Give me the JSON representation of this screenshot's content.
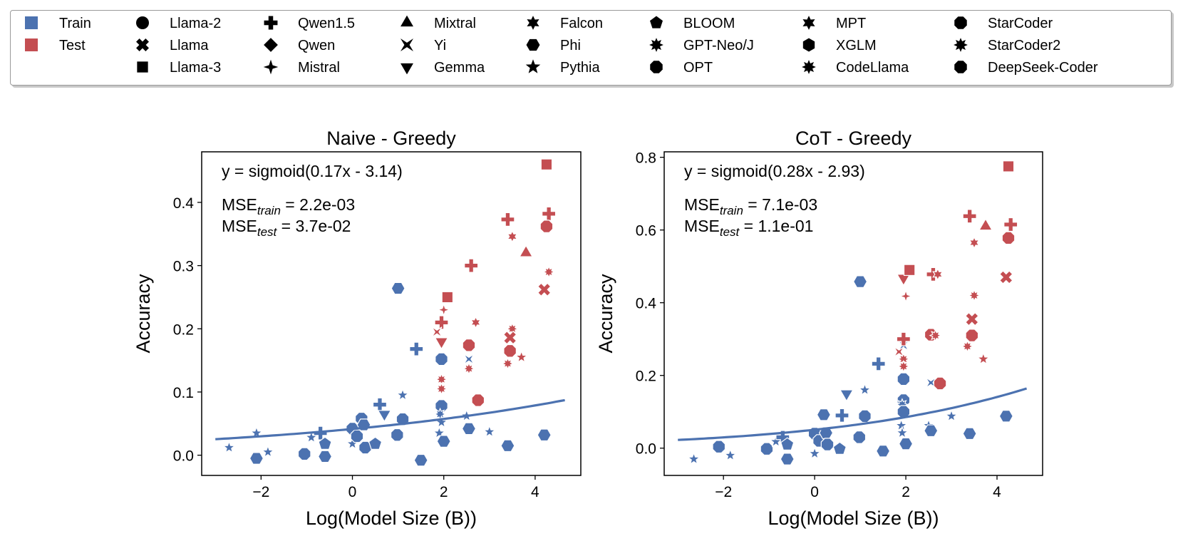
{
  "legend": {
    "splits": [
      {
        "label": "Train",
        "color": "#4c72b0"
      },
      {
        "label": "Test",
        "color": "#c44e52"
      }
    ],
    "families": [
      {
        "label": "Llama-2",
        "marker": "circle"
      },
      {
        "label": "Llama",
        "marker": "x"
      },
      {
        "label": "Llama-3",
        "marker": "square"
      },
      {
        "label": "Qwen1.5",
        "marker": "plus"
      },
      {
        "label": "Qwen",
        "marker": "diamond"
      },
      {
        "label": "Mistral",
        "marker": "thin-diamond"
      },
      {
        "label": "Mixtral",
        "marker": "triangle-up"
      },
      {
        "label": "Yi",
        "marker": "bowtie"
      },
      {
        "label": "Gemma",
        "marker": "triangle-down"
      },
      {
        "label": "Falcon",
        "marker": "star6"
      },
      {
        "label": "Phi",
        "marker": "hexagon"
      },
      {
        "label": "Pythia",
        "marker": "star"
      },
      {
        "label": "BLOOM",
        "marker": "pentagon"
      },
      {
        "label": "GPT-Neo/J",
        "marker": "star8"
      },
      {
        "label": "OPT",
        "marker": "octagon"
      },
      {
        "label": "MPT",
        "marker": "star6"
      },
      {
        "label": "XGLM",
        "marker": "hexagon2"
      },
      {
        "label": "CodeLlama",
        "marker": "star8"
      },
      {
        "label": "StarCoder",
        "marker": "octagon"
      },
      {
        "label": "StarCoder2",
        "marker": "star8"
      },
      {
        "label": "DeepSeek-Coder",
        "marker": "octagon"
      }
    ]
  },
  "chart_data": [
    {
      "type": "scatter",
      "title": "Naive - Greedy",
      "xlabel": "Log(Model Size (B))",
      "ylabel": "Accuracy",
      "xlim": [
        -3.3,
        5.0
      ],
      "ylim": [
        -0.032,
        0.48
      ],
      "xticks": [
        -2,
        0,
        2,
        4
      ],
      "xtick_labels": [
        "−2",
        "0",
        "2",
        "4"
      ],
      "yticks": [
        0.0,
        0.1,
        0.2,
        0.3,
        0.4
      ],
      "ytick_labels": [
        "0.0",
        "0.1",
        "0.2",
        "0.3",
        "0.4"
      ],
      "fit": {
        "label": "y = sigmoid(0.17x - 3.14)",
        "a": 0.17,
        "b": -3.14,
        "x_range": [
          -3.0,
          4.65
        ]
      },
      "mse_train": {
        "base": "MSE",
        "sub": "train",
        "value": " = 2.2e-03"
      },
      "mse_test": {
        "base": "MSE",
        "sub": "test",
        "value": " = 3.7e-02"
      },
      "points": [
        {
          "x": -2.7,
          "y": 0.012,
          "m": "star",
          "s": "train"
        },
        {
          "x": -2.1,
          "y": -0.005,
          "m": "hexagon",
          "s": "train"
        },
        {
          "x": -2.1,
          "y": 0.035,
          "m": "star",
          "s": "train"
        },
        {
          "x": -1.85,
          "y": 0.005,
          "m": "star",
          "s": "train"
        },
        {
          "x": -1.05,
          "y": 0.002,
          "m": "octagon",
          "s": "train"
        },
        {
          "x": -0.9,
          "y": 0.028,
          "m": "star",
          "s": "train"
        },
        {
          "x": -0.7,
          "y": 0.035,
          "m": "plus",
          "s": "train"
        },
        {
          "x": -0.6,
          "y": 0.018,
          "m": "pentagon",
          "s": "train"
        },
        {
          "x": -0.6,
          "y": -0.002,
          "m": "hexagon",
          "s": "train"
        },
        {
          "x": 0.0,
          "y": 0.042,
          "m": "octagon",
          "s": "train"
        },
        {
          "x": 0.0,
          "y": 0.018,
          "m": "star",
          "s": "train"
        },
        {
          "x": 0.1,
          "y": 0.03,
          "m": "octagon",
          "s": "train"
        },
        {
          "x": 0.2,
          "y": 0.058,
          "m": "octagon",
          "s": "train"
        },
        {
          "x": 0.25,
          "y": 0.048,
          "m": "hexagon",
          "s": "train"
        },
        {
          "x": 0.28,
          "y": 0.012,
          "m": "octagon",
          "s": "train"
        },
        {
          "x": 0.5,
          "y": 0.018,
          "m": "pentagon",
          "s": "train"
        },
        {
          "x": 0.6,
          "y": 0.08,
          "m": "plus",
          "s": "train"
        },
        {
          "x": 0.7,
          "y": 0.065,
          "m": "triangle-down",
          "s": "train"
        },
        {
          "x": 0.98,
          "y": 0.032,
          "m": "octagon",
          "s": "train"
        },
        {
          "x": 1.0,
          "y": 0.264,
          "m": "hexagon",
          "s": "train"
        },
        {
          "x": 1.1,
          "y": 0.095,
          "m": "star",
          "s": "train"
        },
        {
          "x": 1.1,
          "y": 0.057,
          "m": "octagon",
          "s": "train"
        },
        {
          "x": 1.5,
          "y": -0.008,
          "m": "hexagon",
          "s": "train"
        },
        {
          "x": 1.4,
          "y": 0.168,
          "m": "plus",
          "s": "train"
        },
        {
          "x": 1.95,
          "y": 0.152,
          "m": "octagon",
          "s": "train"
        },
        {
          "x": 1.95,
          "y": 0.078,
          "m": "octagon",
          "s": "train"
        },
        {
          "x": 1.92,
          "y": 0.065,
          "m": "star8",
          "s": "train"
        },
        {
          "x": 1.95,
          "y": 0.052,
          "m": "star",
          "s": "train"
        },
        {
          "x": 1.9,
          "y": 0.035,
          "m": "star",
          "s": "train"
        },
        {
          "x": 2.0,
          "y": 0.022,
          "m": "hexagon",
          "s": "train"
        },
        {
          "x": 2.5,
          "y": 0.062,
          "m": "star",
          "s": "train"
        },
        {
          "x": 2.55,
          "y": 0.042,
          "m": "hexagon",
          "s": "train"
        },
        {
          "x": 2.55,
          "y": 0.152,
          "m": "bowtie",
          "s": "train"
        },
        {
          "x": 3.0,
          "y": 0.037,
          "m": "star",
          "s": "train"
        },
        {
          "x": 3.4,
          "y": 0.015,
          "m": "hexagon",
          "s": "train"
        },
        {
          "x": 4.2,
          "y": 0.032,
          "m": "hexagon",
          "s": "train"
        },
        {
          "x": 1.95,
          "y": 0.21,
          "m": "plus",
          "s": "test"
        },
        {
          "x": 1.95,
          "y": 0.18,
          "m": "triangle-down",
          "s": "test"
        },
        {
          "x": 1.85,
          "y": 0.195,
          "m": "bowtie",
          "s": "test"
        },
        {
          "x": 2.0,
          "y": 0.23,
          "m": "thin-diamond",
          "s": "test"
        },
        {
          "x": 2.08,
          "y": 0.25,
          "m": "square",
          "s": "test"
        },
        {
          "x": 1.95,
          "y": 0.12,
          "m": "star8",
          "s": "test"
        },
        {
          "x": 1.95,
          "y": 0.105,
          "m": "star8",
          "s": "test"
        },
        {
          "x": 2.6,
          "y": 0.3,
          "m": "plus",
          "s": "test"
        },
        {
          "x": 2.55,
          "y": 0.174,
          "m": "octagon",
          "s": "test"
        },
        {
          "x": 2.55,
          "y": 0.137,
          "m": "star8",
          "s": "test"
        },
        {
          "x": 2.7,
          "y": 0.21,
          "m": "star6",
          "s": "test"
        },
        {
          "x": 2.75,
          "y": 0.087,
          "m": "octagon",
          "s": "test"
        },
        {
          "x": 3.4,
          "y": 0.373,
          "m": "plus",
          "s": "test"
        },
        {
          "x": 3.5,
          "y": 0.346,
          "m": "star6",
          "s": "test"
        },
        {
          "x": 3.5,
          "y": 0.2,
          "m": "star8",
          "s": "test"
        },
        {
          "x": 3.45,
          "y": 0.186,
          "m": "x",
          "s": "test"
        },
        {
          "x": 3.45,
          "y": 0.165,
          "m": "octagon",
          "s": "test"
        },
        {
          "x": 3.4,
          "y": 0.145,
          "m": "star8",
          "s": "test"
        },
        {
          "x": 3.7,
          "y": 0.155,
          "m": "star",
          "s": "test"
        },
        {
          "x": 3.8,
          "y": 0.32,
          "m": "triangle-up",
          "s": "test"
        },
        {
          "x": 4.25,
          "y": 0.46,
          "m": "square",
          "s": "test"
        },
        {
          "x": 4.3,
          "y": 0.382,
          "m": "plus",
          "s": "test"
        },
        {
          "x": 4.25,
          "y": 0.362,
          "m": "octagon",
          "s": "test"
        },
        {
          "x": 4.3,
          "y": 0.29,
          "m": "star8",
          "s": "test"
        },
        {
          "x": 4.2,
          "y": 0.262,
          "m": "x",
          "s": "test"
        }
      ]
    },
    {
      "type": "scatter",
      "title": "CoT - Greedy",
      "xlabel": "Log(Model Size (B))",
      "ylabel": "Accuracy",
      "xlim": [
        -3.3,
        5.0
      ],
      "ylim": [
        -0.075,
        0.815
      ],
      "xticks": [
        -2,
        0,
        2,
        4
      ],
      "xtick_labels": [
        "−2",
        "0",
        "2",
        "4"
      ],
      "yticks": [
        0.0,
        0.2,
        0.4,
        0.6,
        0.8
      ],
      "ytick_labels": [
        "0.0",
        "0.2",
        "0.4",
        "0.6",
        "0.8"
      ],
      "fit": {
        "label": "y = sigmoid(0.28x - 2.93)",
        "a": 0.28,
        "b": -2.93,
        "x_range": [
          -3.0,
          4.65
        ]
      },
      "mse_train": {
        "base": "MSE",
        "sub": "train",
        "value": " = 7.1e-03"
      },
      "mse_test": {
        "base": "MSE",
        "sub": "test",
        "value": " = 1.1e-01"
      },
      "points": [
        {
          "x": -2.65,
          "y": -0.03,
          "m": "star",
          "s": "train"
        },
        {
          "x": -2.1,
          "y": 0.004,
          "m": "octagon",
          "s": "train"
        },
        {
          "x": -1.85,
          "y": -0.02,
          "m": "star",
          "s": "train"
        },
        {
          "x": -1.05,
          "y": -0.002,
          "m": "octagon",
          "s": "train"
        },
        {
          "x": -0.85,
          "y": 0.018,
          "m": "star",
          "s": "train"
        },
        {
          "x": -0.7,
          "y": 0.03,
          "m": "plus",
          "s": "train"
        },
        {
          "x": -0.6,
          "y": 0.01,
          "m": "pentagon",
          "s": "train"
        },
        {
          "x": -0.6,
          "y": -0.03,
          "m": "hexagon",
          "s": "train"
        },
        {
          "x": 0.0,
          "y": 0.04,
          "m": "octagon",
          "s": "train"
        },
        {
          "x": 0.0,
          "y": -0.015,
          "m": "star",
          "s": "train"
        },
        {
          "x": 0.1,
          "y": 0.02,
          "m": "octagon",
          "s": "train"
        },
        {
          "x": 0.2,
          "y": 0.092,
          "m": "hexagon",
          "s": "train"
        },
        {
          "x": 0.25,
          "y": 0.042,
          "m": "hexagon",
          "s": "train"
        },
        {
          "x": 0.28,
          "y": 0.01,
          "m": "octagon",
          "s": "train"
        },
        {
          "x": 0.55,
          "y": -0.002,
          "m": "pentagon",
          "s": "train"
        },
        {
          "x": 0.6,
          "y": 0.09,
          "m": "plus",
          "s": "train"
        },
        {
          "x": 0.7,
          "y": 0.15,
          "m": "triangle-down",
          "s": "train"
        },
        {
          "x": 0.98,
          "y": 0.03,
          "m": "octagon",
          "s": "train"
        },
        {
          "x": 1.0,
          "y": 0.458,
          "m": "hexagon",
          "s": "train"
        },
        {
          "x": 1.1,
          "y": 0.16,
          "m": "star",
          "s": "train"
        },
        {
          "x": 1.1,
          "y": 0.088,
          "m": "octagon",
          "s": "train"
        },
        {
          "x": 1.5,
          "y": -0.008,
          "m": "hexagon",
          "s": "train"
        },
        {
          "x": 1.4,
          "y": 0.232,
          "m": "plus",
          "s": "train"
        },
        {
          "x": 1.95,
          "y": 0.19,
          "m": "octagon",
          "s": "train"
        },
        {
          "x": 1.95,
          "y": 0.132,
          "m": "octagon",
          "s": "train"
        },
        {
          "x": 1.92,
          "y": 0.12,
          "m": "star8",
          "s": "train"
        },
        {
          "x": 1.95,
          "y": 0.1,
          "m": "octagon",
          "s": "train"
        },
        {
          "x": 1.9,
          "y": 0.062,
          "m": "star",
          "s": "train"
        },
        {
          "x": 1.92,
          "y": 0.042,
          "m": "star",
          "s": "train"
        },
        {
          "x": 2.0,
          "y": 0.012,
          "m": "hexagon",
          "s": "train"
        },
        {
          "x": 1.95,
          "y": 0.282,
          "m": "bowtie",
          "s": "train"
        },
        {
          "x": 2.5,
          "y": 0.062,
          "m": "star",
          "s": "train"
        },
        {
          "x": 2.55,
          "y": 0.048,
          "m": "hexagon",
          "s": "train"
        },
        {
          "x": 2.55,
          "y": 0.18,
          "m": "bowtie",
          "s": "train"
        },
        {
          "x": 3.0,
          "y": 0.088,
          "m": "star",
          "s": "train"
        },
        {
          "x": 3.4,
          "y": 0.04,
          "m": "hexagon",
          "s": "train"
        },
        {
          "x": 4.2,
          "y": 0.088,
          "m": "hexagon",
          "s": "train"
        },
        {
          "x": 1.95,
          "y": 0.3,
          "m": "plus",
          "s": "test"
        },
        {
          "x": 1.95,
          "y": 0.468,
          "m": "triangle-down",
          "s": "test"
        },
        {
          "x": 1.85,
          "y": 0.265,
          "m": "bowtie",
          "s": "test"
        },
        {
          "x": 2.0,
          "y": 0.418,
          "m": "thin-diamond",
          "s": "test"
        },
        {
          "x": 2.08,
          "y": 0.49,
          "m": "square",
          "s": "test"
        },
        {
          "x": 1.95,
          "y": 0.245,
          "m": "star8",
          "s": "test"
        },
        {
          "x": 1.95,
          "y": 0.225,
          "m": "star8",
          "s": "test"
        },
        {
          "x": 2.6,
          "y": 0.478,
          "m": "plus",
          "s": "test"
        },
        {
          "x": 2.55,
          "y": 0.312,
          "m": "octagon",
          "s": "test"
        },
        {
          "x": 2.65,
          "y": 0.31,
          "m": "star8",
          "s": "test"
        },
        {
          "x": 2.7,
          "y": 0.478,
          "m": "star6",
          "s": "test"
        },
        {
          "x": 2.75,
          "y": 0.178,
          "m": "octagon",
          "s": "test"
        },
        {
          "x": 3.4,
          "y": 0.638,
          "m": "plus",
          "s": "test"
        },
        {
          "x": 3.5,
          "y": 0.565,
          "m": "star6",
          "s": "test"
        },
        {
          "x": 3.5,
          "y": 0.42,
          "m": "star8",
          "s": "test"
        },
        {
          "x": 3.45,
          "y": 0.355,
          "m": "x",
          "s": "test"
        },
        {
          "x": 3.45,
          "y": 0.31,
          "m": "octagon",
          "s": "test"
        },
        {
          "x": 3.35,
          "y": 0.28,
          "m": "star8",
          "s": "test"
        },
        {
          "x": 3.7,
          "y": 0.245,
          "m": "star",
          "s": "test"
        },
        {
          "x": 3.75,
          "y": 0.61,
          "m": "triangle-up",
          "s": "test"
        },
        {
          "x": 4.25,
          "y": 0.775,
          "m": "square",
          "s": "test"
        },
        {
          "x": 4.3,
          "y": 0.615,
          "m": "plus",
          "s": "test"
        },
        {
          "x": 4.25,
          "y": 0.578,
          "m": "octagon",
          "s": "test"
        },
        {
          "x": 4.2,
          "y": 0.47,
          "m": "x",
          "s": "test"
        }
      ]
    }
  ]
}
